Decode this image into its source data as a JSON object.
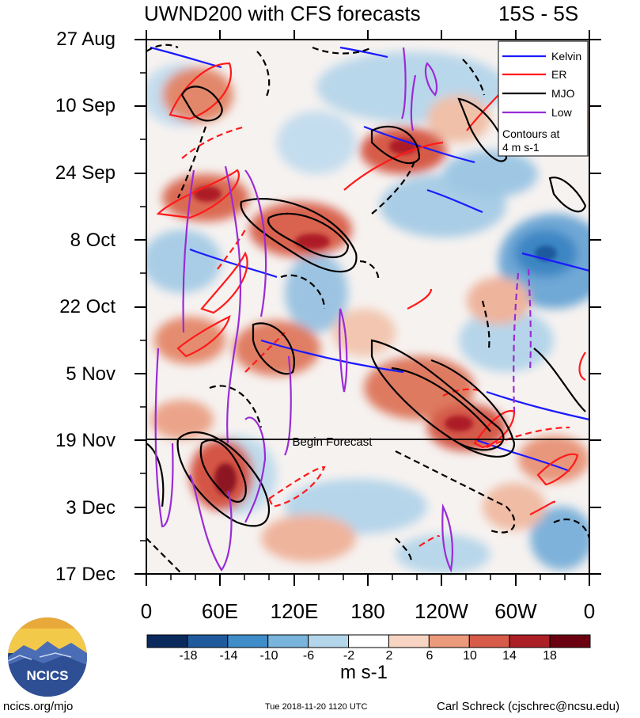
{
  "chart_data": {
    "type": "heatmap",
    "title": "UWND200 with CFS forecasts",
    "subtitle": "15S - 5S",
    "y_ticks": [
      "27 Aug",
      "10 Sep",
      "24 Sep",
      "8 Oct",
      "22 Oct",
      "5 Nov",
      "19 Nov",
      "3 Dec",
      "17 Dec"
    ],
    "x_ticks": [
      "0",
      "60E",
      "120E",
      "180",
      "120W",
      "60W",
      "0"
    ],
    "colorbar": {
      "labels": [
        "-18",
        "-14",
        "-10",
        "-6",
        "-2",
        "2",
        "6",
        "10",
        "14",
        "18"
      ],
      "units": "m s-1",
      "colors": [
        "#0a2a5e",
        "#1e5a9c",
        "#3e8cc8",
        "#79b4dc",
        "#b4d6ea",
        "#ffffff",
        "#f8d4c2",
        "#ec9a7c",
        "#d65b48",
        "#ad1f26",
        "#6b0011"
      ]
    },
    "legend": {
      "placement": "top-right",
      "entries": [
        {
          "name": "Kelvin",
          "color": "#1a1aff"
        },
        {
          "name": "ER",
          "color": "#ff1a1a"
        },
        {
          "name": "MJO",
          "color": "#000000"
        },
        {
          "name": "Low",
          "color": "#9a2bd6"
        }
      ],
      "note1": "Contours at",
      "note2": "4 m s-1"
    },
    "annotation": "Begin Forecast",
    "forecast_start": "19 Nov"
  },
  "footer": {
    "site": "ncics.org/mjo",
    "timestamp": "Tue 2018-11-20 1120 UTC",
    "author": "Carl Schreck (cjschrec@ncsu.edu)"
  },
  "logo_text": "NCICS"
}
